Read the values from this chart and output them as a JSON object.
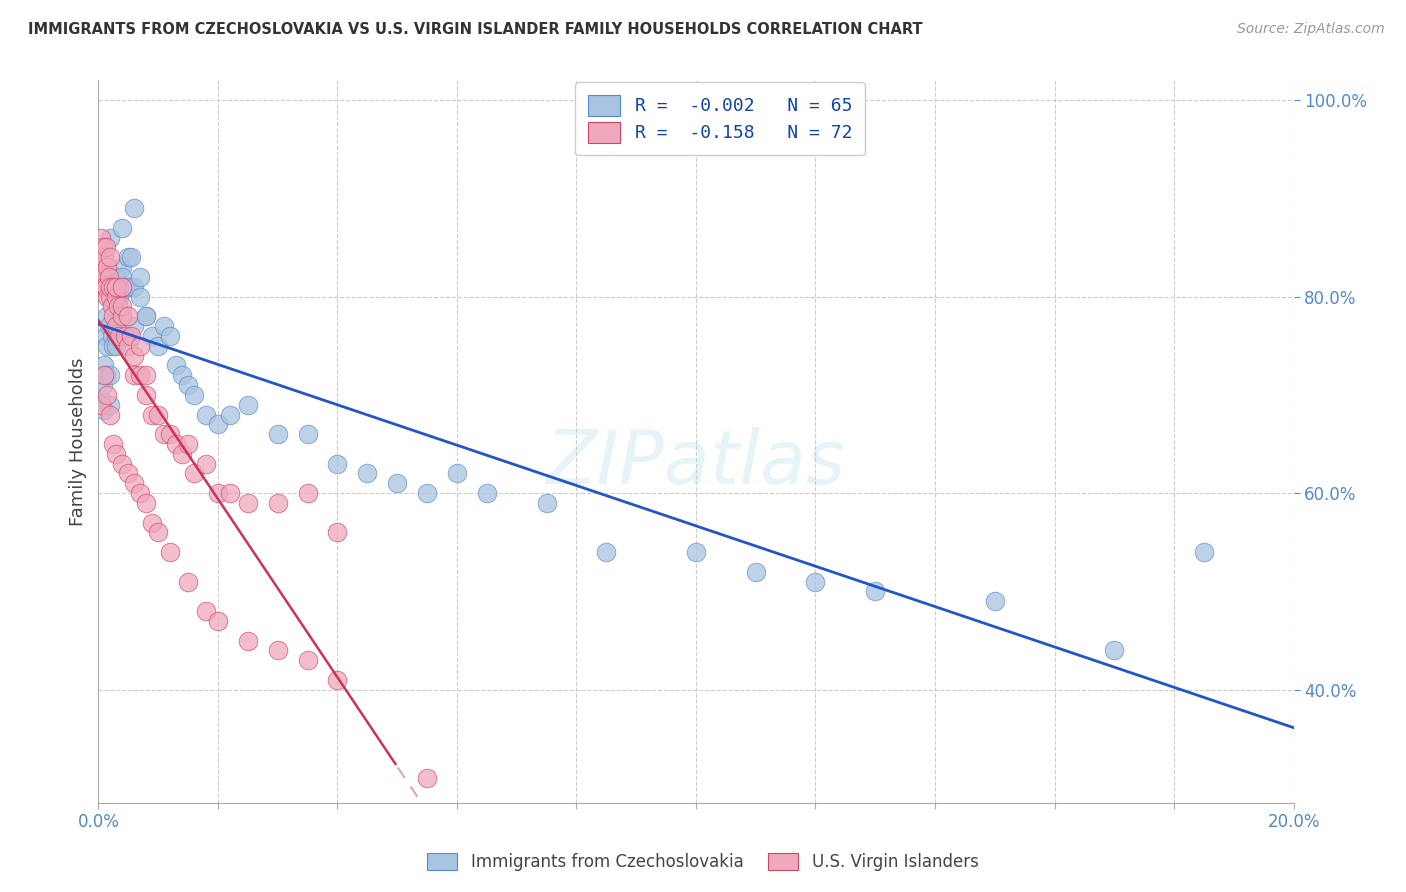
{
  "title": "IMMIGRANTS FROM CZECHOSLOVAKIA VS U.S. VIRGIN ISLANDER FAMILY HOUSEHOLDS CORRELATION CHART",
  "source": "Source: ZipAtlas.com",
  "ylabel": "Family Households",
  "legend_label_blue": "Immigrants from Czechoslovakia",
  "legend_label_pink": "U.S. Virgin Islanders",
  "R_blue": -0.002,
  "N_blue": 65,
  "R_pink": -0.158,
  "N_pink": 72,
  "xlim": [
    0.0,
    0.2
  ],
  "ylim": [
    0.285,
    1.02
  ],
  "x_ticks": [
    0.0,
    0.02,
    0.04,
    0.06,
    0.08,
    0.1,
    0.12,
    0.14,
    0.16,
    0.18,
    0.2
  ],
  "x_tick_labels": [
    "0.0%",
    "",
    "",
    "",
    "",
    "",
    "",
    "",
    "",
    "",
    "20.0%"
  ],
  "y_ticks": [
    0.4,
    0.6,
    0.8,
    1.0
  ],
  "color_blue": "#a8c4e0",
  "color_pink": "#f0a8bc",
  "edge_blue": "#5588cc",
  "edge_pink": "#cc4466",
  "trend_blue_color": "#2255cc",
  "trend_pink_solid_color": "#cc3355",
  "trend_pink_dash_color": "#ddaaaa",
  "background_color": "#ffffff",
  "grid_color": "#cccccc",
  "blue_x": [
    0.0005,
    0.0008,
    0.001,
    0.001,
    0.0012,
    0.0013,
    0.0015,
    0.0015,
    0.0018,
    0.002,
    0.002,
    0.0022,
    0.0025,
    0.0025,
    0.003,
    0.003,
    0.003,
    0.0032,
    0.0035,
    0.004,
    0.004,
    0.004,
    0.0045,
    0.005,
    0.005,
    0.0055,
    0.006,
    0.006,
    0.007,
    0.007,
    0.008,
    0.009,
    0.01,
    0.011,
    0.012,
    0.013,
    0.014,
    0.015,
    0.016,
    0.018,
    0.02,
    0.022,
    0.025,
    0.03,
    0.035,
    0.04,
    0.045,
    0.05,
    0.055,
    0.06,
    0.065,
    0.075,
    0.085,
    0.1,
    0.11,
    0.12,
    0.13,
    0.15,
    0.17,
    0.185,
    0.002,
    0.003,
    0.004,
    0.006,
    0.008
  ],
  "blue_y": [
    0.695,
    0.71,
    0.685,
    0.73,
    0.72,
    0.76,
    0.75,
    0.78,
    0.77,
    0.69,
    0.72,
    0.76,
    0.75,
    0.8,
    0.79,
    0.82,
    0.76,
    0.81,
    0.8,
    0.83,
    0.78,
    0.82,
    0.81,
    0.84,
    0.81,
    0.84,
    0.77,
    0.81,
    0.8,
    0.82,
    0.78,
    0.76,
    0.75,
    0.77,
    0.76,
    0.73,
    0.72,
    0.71,
    0.7,
    0.68,
    0.67,
    0.68,
    0.69,
    0.66,
    0.66,
    0.63,
    0.62,
    0.61,
    0.6,
    0.62,
    0.6,
    0.59,
    0.54,
    0.54,
    0.52,
    0.51,
    0.5,
    0.49,
    0.44,
    0.54,
    0.86,
    0.75,
    0.87,
    0.89,
    0.78
  ],
  "pink_x": [
    0.0003,
    0.0005,
    0.0005,
    0.0008,
    0.001,
    0.001,
    0.0012,
    0.0012,
    0.0015,
    0.0015,
    0.0018,
    0.002,
    0.002,
    0.002,
    0.0022,
    0.0025,
    0.0025,
    0.003,
    0.003,
    0.003,
    0.0032,
    0.0035,
    0.004,
    0.004,
    0.004,
    0.0045,
    0.005,
    0.005,
    0.0055,
    0.006,
    0.006,
    0.007,
    0.007,
    0.008,
    0.008,
    0.009,
    0.01,
    0.011,
    0.012,
    0.013,
    0.014,
    0.015,
    0.016,
    0.018,
    0.02,
    0.022,
    0.025,
    0.03,
    0.035,
    0.04,
    0.0005,
    0.001,
    0.0015,
    0.002,
    0.0025,
    0.003,
    0.004,
    0.005,
    0.006,
    0.007,
    0.008,
    0.009,
    0.01,
    0.012,
    0.015,
    0.018,
    0.02,
    0.025,
    0.03,
    0.035,
    0.04,
    0.055
  ],
  "pink_y": [
    0.83,
    0.86,
    0.82,
    0.85,
    0.81,
    0.84,
    0.81,
    0.85,
    0.8,
    0.83,
    0.82,
    0.8,
    0.81,
    0.84,
    0.79,
    0.81,
    0.78,
    0.8,
    0.77,
    0.81,
    0.79,
    0.76,
    0.78,
    0.81,
    0.79,
    0.76,
    0.75,
    0.78,
    0.76,
    0.74,
    0.72,
    0.75,
    0.72,
    0.72,
    0.7,
    0.68,
    0.68,
    0.66,
    0.66,
    0.65,
    0.64,
    0.65,
    0.62,
    0.63,
    0.6,
    0.6,
    0.59,
    0.59,
    0.6,
    0.56,
    0.69,
    0.72,
    0.7,
    0.68,
    0.65,
    0.64,
    0.63,
    0.62,
    0.61,
    0.6,
    0.59,
    0.57,
    0.56,
    0.54,
    0.51,
    0.48,
    0.47,
    0.45,
    0.44,
    0.43,
    0.41,
    0.31
  ],
  "pink_trend_x_start": 0.0,
  "pink_trend_x_solid_end": 0.05,
  "pink_trend_x_end": 0.2,
  "watermark_text": "ZIPatlas"
}
